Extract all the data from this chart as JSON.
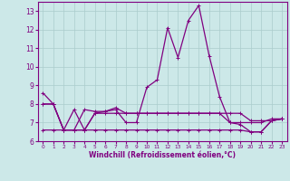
{
  "x": [
    0,
    1,
    2,
    3,
    4,
    5,
    6,
    7,
    8,
    9,
    10,
    11,
    12,
    13,
    14,
    15,
    16,
    17,
    18,
    19,
    20,
    21,
    22,
    23
  ],
  "line1": [
    8.6,
    8.0,
    6.6,
    7.7,
    6.6,
    7.5,
    7.6,
    7.7,
    7.0,
    7.0,
    8.9,
    9.3,
    12.1,
    10.5,
    12.5,
    13.3,
    10.6,
    8.4,
    7.0,
    6.9,
    6.5,
    6.5,
    7.1,
    7.2
  ],
  "line2": [
    8.0,
    8.0,
    6.6,
    6.6,
    7.7,
    7.6,
    7.6,
    7.8,
    7.5,
    7.5,
    7.5,
    7.5,
    7.5,
    7.5,
    7.5,
    7.5,
    7.5,
    7.5,
    7.5,
    7.5,
    7.1,
    7.1,
    7.1,
    7.2
  ],
  "line3": [
    8.0,
    8.0,
    6.6,
    6.6,
    6.6,
    7.5,
    7.5,
    7.5,
    7.5,
    7.5,
    7.5,
    7.5,
    7.5,
    7.5,
    7.5,
    7.5,
    7.5,
    7.5,
    7.0,
    7.0,
    7.0,
    7.0,
    7.2,
    7.2
  ],
  "line4": [
    6.6,
    6.6,
    6.6,
    6.6,
    6.6,
    6.6,
    6.6,
    6.6,
    6.6,
    6.6,
    6.6,
    6.6,
    6.6,
    6.6,
    6.6,
    6.6,
    6.6,
    6.6,
    6.6,
    6.6,
    6.5,
    6.5,
    7.1,
    7.2
  ],
  "ylim": [
    6.0,
    13.5
  ],
  "xlim": [
    -0.5,
    23.5
  ],
  "yticks": [
    6,
    7,
    8,
    9,
    10,
    11,
    12,
    13
  ],
  "xticks": [
    0,
    1,
    2,
    3,
    4,
    5,
    6,
    7,
    8,
    9,
    10,
    11,
    12,
    13,
    14,
    15,
    16,
    17,
    18,
    19,
    20,
    21,
    22,
    23
  ],
  "xlabel": "Windchill (Refroidissement éolien,°C)",
  "line_color": "#800080",
  "bg_color": "#cce8e8",
  "grid_color": "#aacccc"
}
